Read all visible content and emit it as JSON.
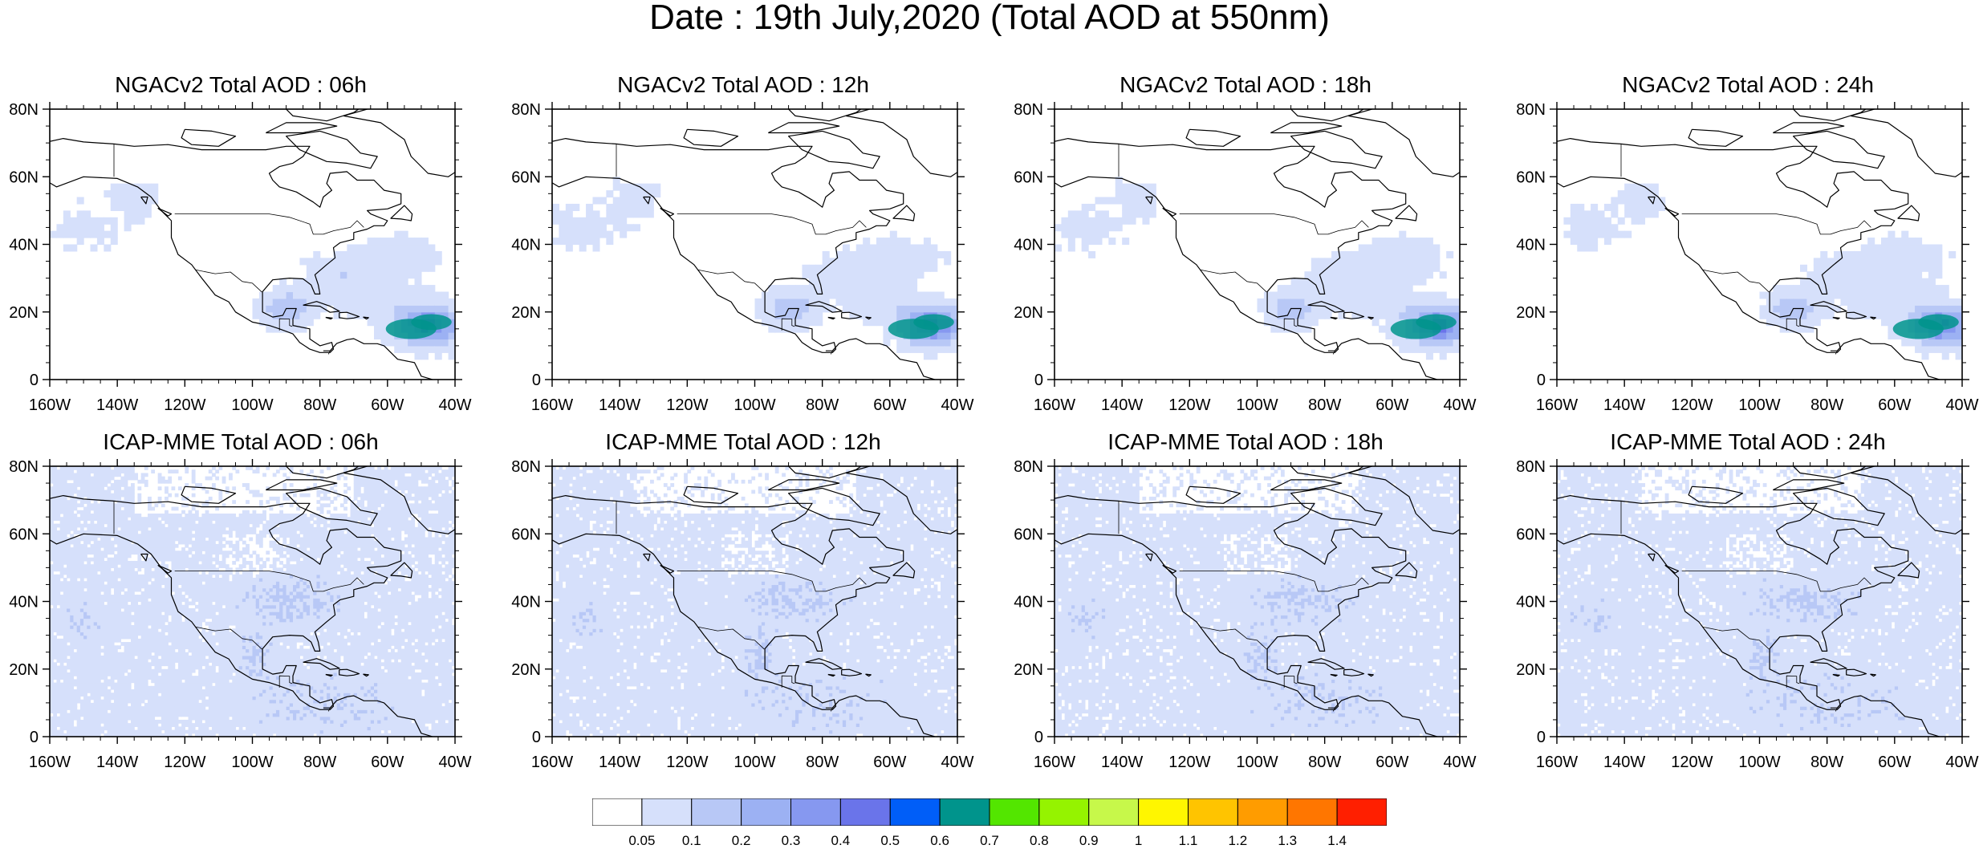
{
  "title": "Date : 19th July,2020 (Total AOD at 550nm)",
  "colors": {
    "levels": [
      "#ffffff",
      "#d6e0fb",
      "#b8c8f6",
      "#9cb1f3",
      "#8698f0",
      "#6a74ea",
      "#005ef8",
      "#00948c",
      "#53e600",
      "#95f300",
      "#c7f84a",
      "#fff600",
      "#ffc400",
      "#ff9c00",
      "#ff7600",
      "#ff1f00"
    ],
    "coast": "#000000"
  },
  "panels": [
    {
      "id": "ngac-06",
      "title": "NGACv2 Total AOD : 06h"
    },
    {
      "id": "ngac-12",
      "title": "NGACv2 Total AOD : 12h"
    },
    {
      "id": "ngac-18",
      "title": "NGACv2 Total AOD : 18h"
    },
    {
      "id": "ngac-24",
      "title": "NGACv2 Total AOD : 24h"
    },
    {
      "id": "icap-06",
      "title": "ICAP-MME Total AOD : 06h"
    },
    {
      "id": "icap-12",
      "title": "ICAP-MME Total AOD : 12h"
    },
    {
      "id": "icap-18",
      "title": "ICAP-MME Total AOD : 18h"
    },
    {
      "id": "icap-24",
      "title": "ICAP-MME Total AOD : 24h"
    }
  ],
  "axes": {
    "lat_ticks": [
      "0",
      "20N",
      "40N",
      "60N",
      "80N"
    ],
    "lon_ticks": [
      "160W",
      "140W",
      "120W",
      "100W",
      "80W",
      "60W",
      "40W"
    ],
    "lat_range": [
      0,
      80
    ],
    "lon_range": [
      -160,
      -40
    ]
  },
  "colorbar": {
    "labels": [
      "0.05",
      "0.1",
      "0.2",
      "0.3",
      "0.4",
      "0.5",
      "0.6",
      "0.7",
      "0.8",
      "0.9",
      "1",
      "1.1",
      "1.2",
      "1.3",
      "1.4"
    ]
  }
}
